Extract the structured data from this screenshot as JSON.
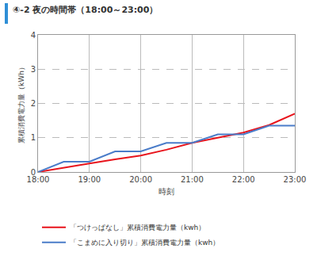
{
  "chart_data": {
    "type": "line",
    "title": "④-2 夜の時間帯（18:00～23:00）",
    "x_label": "時刻",
    "y_label": "累積消費電力量（kWh）",
    "x": [
      18,
      18.5,
      19,
      19.5,
      20,
      20.5,
      21,
      21.5,
      22,
      22.5,
      23
    ],
    "xlim": [
      18,
      23
    ],
    "xticks": [
      {
        "value": 18,
        "label": "18:00"
      },
      {
        "value": 19,
        "label": "19:00"
      },
      {
        "value": 20,
        "label": "20:00"
      },
      {
        "value": 21,
        "label": "21:00"
      },
      {
        "value": 22,
        "label": "22:00"
      },
      {
        "value": 23,
        "label": "23:00"
      }
    ],
    "ylim": [
      0,
      4
    ],
    "yticks": [
      0,
      1,
      2,
      3,
      4
    ],
    "grid": true,
    "legend": "bottom",
    "series": [
      {
        "name": "「つけっぱなし」累積消費電力量（kwh）",
        "color": "#e8141c",
        "values": [
          0,
          0.13,
          0.25,
          0.37,
          0.48,
          0.65,
          0.85,
          1.0,
          1.15,
          1.37,
          1.7
        ]
      },
      {
        "name": "「こまめに入り切り」累積消費電力量（kwh）",
        "color": "#4a7cc9",
        "values": [
          0,
          0.3,
          0.3,
          0.6,
          0.6,
          0.85,
          0.85,
          1.1,
          1.1,
          1.35,
          1.35
        ]
      }
    ]
  }
}
